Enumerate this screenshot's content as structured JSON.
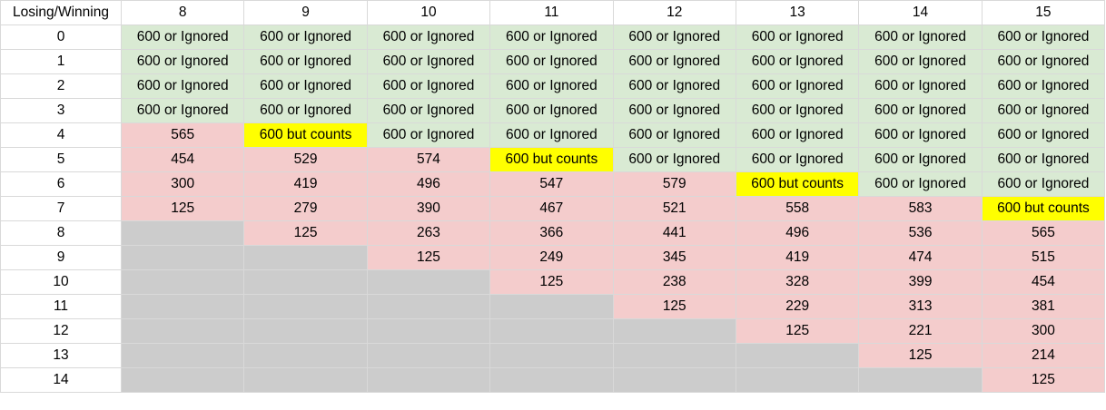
{
  "header": {
    "corner": "Losing/Winning",
    "columns": [
      "8",
      "9",
      "10",
      "11",
      "12",
      "13",
      "14",
      "15"
    ]
  },
  "rows": [
    {
      "label": "0",
      "cells": [
        {
          "text": "600 or Ignored",
          "kind": "win"
        },
        {
          "text": "600 or Ignored",
          "kind": "win"
        },
        {
          "text": "600 or Ignored",
          "kind": "win"
        },
        {
          "text": "600 or Ignored",
          "kind": "win"
        },
        {
          "text": "600 or Ignored",
          "kind": "win"
        },
        {
          "text": "600 or Ignored",
          "kind": "win"
        },
        {
          "text": "600 or Ignored",
          "kind": "win"
        },
        {
          "text": "600 or Ignored",
          "kind": "win"
        }
      ]
    },
    {
      "label": "1",
      "cells": [
        {
          "text": "600 or Ignored",
          "kind": "win"
        },
        {
          "text": "600 or Ignored",
          "kind": "win"
        },
        {
          "text": "600 or Ignored",
          "kind": "win"
        },
        {
          "text": "600 or Ignored",
          "kind": "win"
        },
        {
          "text": "600 or Ignored",
          "kind": "win"
        },
        {
          "text": "600 or Ignored",
          "kind": "win"
        },
        {
          "text": "600 or Ignored",
          "kind": "win"
        },
        {
          "text": "600 or Ignored",
          "kind": "win"
        }
      ]
    },
    {
      "label": "2",
      "cells": [
        {
          "text": "600 or Ignored",
          "kind": "win"
        },
        {
          "text": "600 or Ignored",
          "kind": "win"
        },
        {
          "text": "600 or Ignored",
          "kind": "win"
        },
        {
          "text": "600 or Ignored",
          "kind": "win"
        },
        {
          "text": "600 or Ignored",
          "kind": "win"
        },
        {
          "text": "600 or Ignored",
          "kind": "win"
        },
        {
          "text": "600 or Ignored",
          "kind": "win"
        },
        {
          "text": "600 or Ignored",
          "kind": "win"
        }
      ]
    },
    {
      "label": "3",
      "cells": [
        {
          "text": "600 or Ignored",
          "kind": "win"
        },
        {
          "text": "600 or Ignored",
          "kind": "win"
        },
        {
          "text": "600 or Ignored",
          "kind": "win"
        },
        {
          "text": "600 or Ignored",
          "kind": "win"
        },
        {
          "text": "600 or Ignored",
          "kind": "win"
        },
        {
          "text": "600 or Ignored",
          "kind": "win"
        },
        {
          "text": "600 or Ignored",
          "kind": "win"
        },
        {
          "text": "600 or Ignored",
          "kind": "win"
        }
      ]
    },
    {
      "label": "4",
      "cells": [
        {
          "text": "565",
          "kind": "lose"
        },
        {
          "text": "600 but counts",
          "kind": "edge"
        },
        {
          "text": "600 or Ignored",
          "kind": "win"
        },
        {
          "text": "600 or Ignored",
          "kind": "win"
        },
        {
          "text": "600 or Ignored",
          "kind": "win"
        },
        {
          "text": "600 or Ignored",
          "kind": "win"
        },
        {
          "text": "600 or Ignored",
          "kind": "win"
        },
        {
          "text": "600 or Ignored",
          "kind": "win"
        }
      ]
    },
    {
      "label": "5",
      "cells": [
        {
          "text": "454",
          "kind": "lose"
        },
        {
          "text": "529",
          "kind": "lose"
        },
        {
          "text": "574",
          "kind": "lose"
        },
        {
          "text": "600 but counts",
          "kind": "edge"
        },
        {
          "text": "600 or Ignored",
          "kind": "win"
        },
        {
          "text": "600 or Ignored",
          "kind": "win"
        },
        {
          "text": "600 or Ignored",
          "kind": "win"
        },
        {
          "text": "600 or Ignored",
          "kind": "win"
        }
      ]
    },
    {
      "label": "6",
      "cells": [
        {
          "text": "300",
          "kind": "lose"
        },
        {
          "text": "419",
          "kind": "lose"
        },
        {
          "text": "496",
          "kind": "lose"
        },
        {
          "text": "547",
          "kind": "lose"
        },
        {
          "text": "579",
          "kind": "lose"
        },
        {
          "text": "600 but counts",
          "kind": "edge"
        },
        {
          "text": "600 or Ignored",
          "kind": "win"
        },
        {
          "text": "600 or Ignored",
          "kind": "win"
        }
      ]
    },
    {
      "label": "7",
      "cells": [
        {
          "text": "125",
          "kind": "lose"
        },
        {
          "text": "279",
          "kind": "lose"
        },
        {
          "text": "390",
          "kind": "lose"
        },
        {
          "text": "467",
          "kind": "lose"
        },
        {
          "text": "521",
          "kind": "lose"
        },
        {
          "text": "558",
          "kind": "lose"
        },
        {
          "text": "583",
          "kind": "lose"
        },
        {
          "text": "600 but counts",
          "kind": "edge"
        }
      ]
    },
    {
      "label": "8",
      "cells": [
        {
          "text": "",
          "kind": "empty"
        },
        {
          "text": "125",
          "kind": "lose"
        },
        {
          "text": "263",
          "kind": "lose"
        },
        {
          "text": "366",
          "kind": "lose"
        },
        {
          "text": "441",
          "kind": "lose"
        },
        {
          "text": "496",
          "kind": "lose"
        },
        {
          "text": "536",
          "kind": "lose"
        },
        {
          "text": "565",
          "kind": "lose"
        }
      ]
    },
    {
      "label": "9",
      "cells": [
        {
          "text": "",
          "kind": "empty"
        },
        {
          "text": "",
          "kind": "empty"
        },
        {
          "text": "125",
          "kind": "lose"
        },
        {
          "text": "249",
          "kind": "lose"
        },
        {
          "text": "345",
          "kind": "lose"
        },
        {
          "text": "419",
          "kind": "lose"
        },
        {
          "text": "474",
          "kind": "lose"
        },
        {
          "text": "515",
          "kind": "lose"
        }
      ]
    },
    {
      "label": "10",
      "cells": [
        {
          "text": "",
          "kind": "empty"
        },
        {
          "text": "",
          "kind": "empty"
        },
        {
          "text": "",
          "kind": "empty"
        },
        {
          "text": "125",
          "kind": "lose"
        },
        {
          "text": "238",
          "kind": "lose"
        },
        {
          "text": "328",
          "kind": "lose"
        },
        {
          "text": "399",
          "kind": "lose"
        },
        {
          "text": "454",
          "kind": "lose"
        }
      ]
    },
    {
      "label": "11",
      "cells": [
        {
          "text": "",
          "kind": "empty"
        },
        {
          "text": "",
          "kind": "empty"
        },
        {
          "text": "",
          "kind": "empty"
        },
        {
          "text": "",
          "kind": "empty"
        },
        {
          "text": "125",
          "kind": "lose"
        },
        {
          "text": "229",
          "kind": "lose"
        },
        {
          "text": "313",
          "kind": "lose"
        },
        {
          "text": "381",
          "kind": "lose"
        }
      ]
    },
    {
      "label": "12",
      "cells": [
        {
          "text": "",
          "kind": "empty"
        },
        {
          "text": "",
          "kind": "empty"
        },
        {
          "text": "",
          "kind": "empty"
        },
        {
          "text": "",
          "kind": "empty"
        },
        {
          "text": "",
          "kind": "empty"
        },
        {
          "text": "125",
          "kind": "lose"
        },
        {
          "text": "221",
          "kind": "lose"
        },
        {
          "text": "300",
          "kind": "lose"
        }
      ]
    },
    {
      "label": "13",
      "cells": [
        {
          "text": "",
          "kind": "empty"
        },
        {
          "text": "",
          "kind": "empty"
        },
        {
          "text": "",
          "kind": "empty"
        },
        {
          "text": "",
          "kind": "empty"
        },
        {
          "text": "",
          "kind": "empty"
        },
        {
          "text": "",
          "kind": "empty"
        },
        {
          "text": "125",
          "kind": "lose"
        },
        {
          "text": "214",
          "kind": "lose"
        }
      ]
    },
    {
      "label": "14",
      "cells": [
        {
          "text": "",
          "kind": "empty"
        },
        {
          "text": "",
          "kind": "empty"
        },
        {
          "text": "",
          "kind": "empty"
        },
        {
          "text": "",
          "kind": "empty"
        },
        {
          "text": "",
          "kind": "empty"
        },
        {
          "text": "",
          "kind": "empty"
        },
        {
          "text": "",
          "kind": "empty"
        },
        {
          "text": "125",
          "kind": "lose"
        }
      ]
    }
  ],
  "colors": {
    "win": "#d9ead3",
    "lose": "#f4cccc",
    "edge": "#ffff00",
    "empty": "#cccccc",
    "gridline": "#d9d9d9"
  }
}
